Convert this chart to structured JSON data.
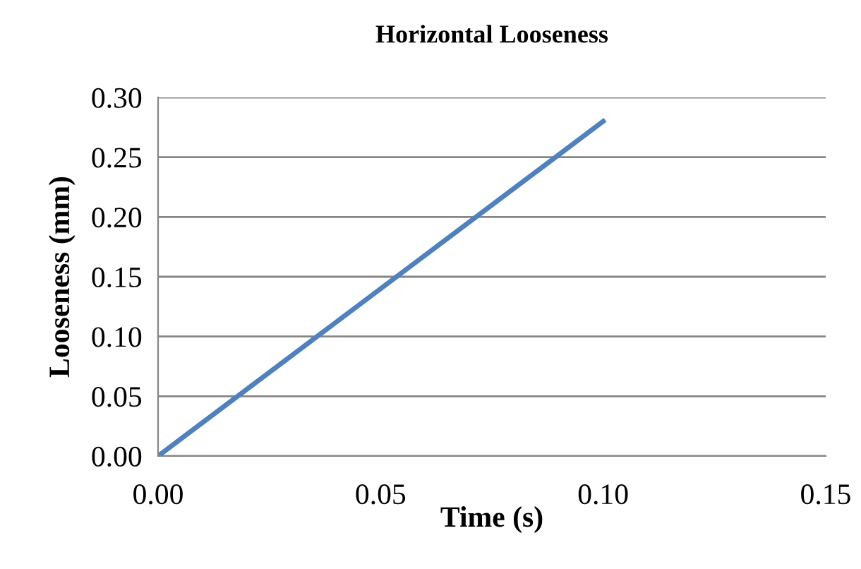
{
  "chart_data": {
    "type": "line",
    "title": "Horizontal Looseness",
    "xlabel": "Time (s)",
    "ylabel": "Looseness (mm)",
    "series": [
      {
        "color": "#4f81bd",
        "x": [
          0.0,
          0.1
        ],
        "values": [
          0.0,
          0.28
        ]
      }
    ],
    "xlim": [
      0.0,
      0.15
    ],
    "xticks": [
      {
        "value": 0,
        "label": "0.00"
      },
      {
        "value": 0.05,
        "label": "0.05"
      },
      {
        "value": 0.1,
        "label": "0.10"
      },
      {
        "value": 0.15,
        "label": "0.15"
      }
    ],
    "ylim": [
      0.0,
      0.3
    ],
    "yticks": [
      {
        "value": 0,
        "label": "0.00"
      },
      {
        "value": 0.05,
        "label": "0.05"
      },
      {
        "value": 0.1,
        "label": "0.10"
      },
      {
        "value": 0.15,
        "label": "0.15"
      },
      {
        "value": 0.2,
        "label": "0.20"
      },
      {
        "value": 0.25,
        "label": "0.25"
      },
      {
        "value": 0.3,
        "label": "0.30"
      }
    ],
    "grid": "y",
    "legend": false,
    "marker": "none",
    "line_style": "solid"
  }
}
